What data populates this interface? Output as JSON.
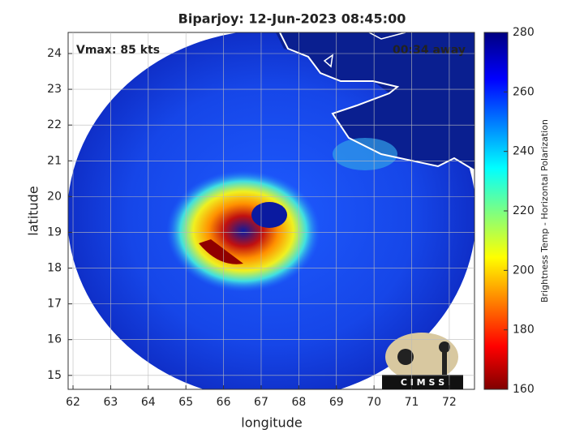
{
  "title": "Biparjoy: 12-Jun-2023 08:45:00",
  "annotations": {
    "vmax": "Vmax: 85 kts",
    "away": "00:34 away",
    "logo": "C I M S S"
  },
  "x_axis": {
    "label": "longitude",
    "lim": [
      61.87,
      72.67
    ],
    "ticks": [
      62,
      63,
      64,
      65,
      66,
      67,
      68,
      69,
      70,
      71,
      72
    ]
  },
  "y_axis": {
    "label": "latitude",
    "lim": [
      14.61,
      24.59
    ],
    "ticks": [
      15,
      16,
      17,
      18,
      19,
      20,
      21,
      22,
      23,
      24
    ]
  },
  "colorbar": {
    "label": "Brightness Temp - Horizontal Polarization",
    "lim": [
      160,
      280
    ],
    "ticks": [
      160,
      180,
      200,
      220,
      240,
      260,
      280
    ]
  }
}
